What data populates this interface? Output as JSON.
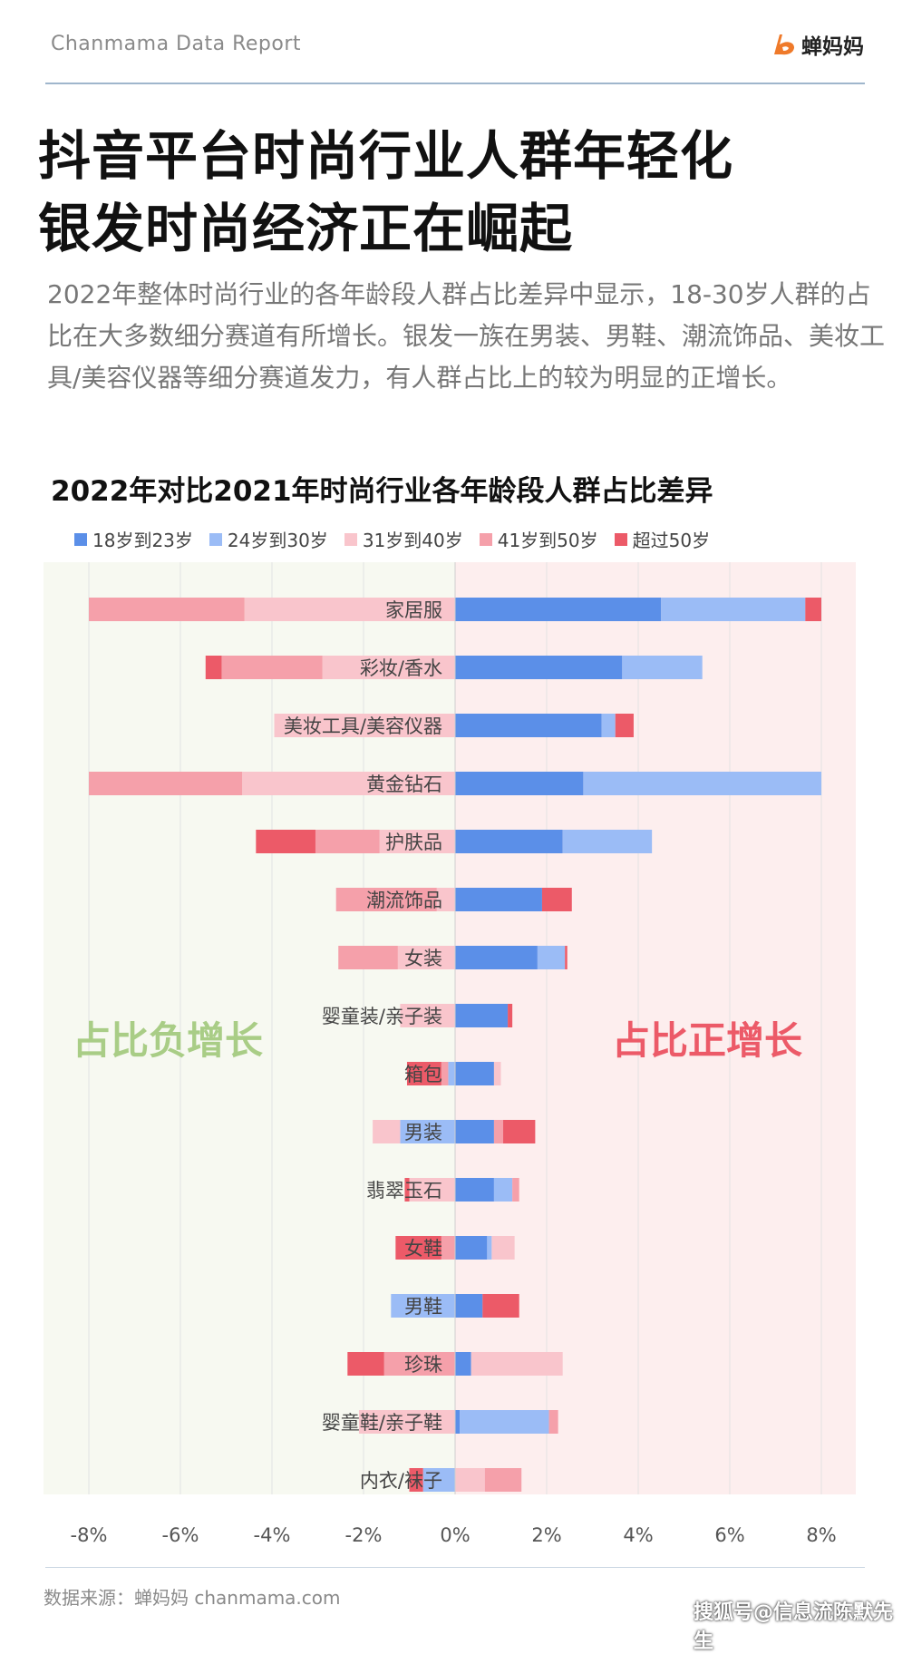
{
  "header": {
    "brand": "Chanmama Data Report",
    "logo_text": "蝉妈妈"
  },
  "title": {
    "line1": "抖音平台时尚行业人群年轻化",
    "line2": "银发时尚经济正在崛起"
  },
  "intro": "2022年整体时尚行业的各年龄段人群占比差异中显示，18-30岁人群的占比在大多数细分赛道有所增长。银发一族在男装、男鞋、潮流饰品、美妆工具/美容仪器等细分赛道发力，有人群占比上的较为明显的正增长。",
  "footer": {
    "source": "数据来源：蝉妈妈 chanmama.com",
    "watermark": "搜狐号@信息流陈默先生"
  },
  "colors": {
    "s18_23": "#5b8fe8",
    "s24_30": "#9bbcf6",
    "s31_40": "#f9c5cc",
    "s41_50": "#f5a0aa",
    "s50p": "#ec5a68",
    "neg_bg": "#f7f9f1",
    "pos_bg": "#fdeeee",
    "neg_label": "#a9cd86",
    "pos_label": "#ec5a68"
  },
  "chart_data": {
    "type": "bar",
    "orientation": "horizontal-stacked-diverging",
    "title": "2022年对比2021年时尚行业各年龄段人群占比差异",
    "legend_position": "top",
    "grid": true,
    "xlim": [
      -8,
      8
    ],
    "x_ticks": [
      "-8%",
      "-6%",
      "-4%",
      "-2%",
      "0%",
      "2%",
      "4%",
      "6%",
      "8%"
    ],
    "x_tick_values": [
      -8,
      -6,
      -4,
      -2,
      0,
      2,
      4,
      6,
      8
    ],
    "region_labels": {
      "negative": "占比负增长",
      "positive": "占比正增长"
    },
    "series": [
      {
        "name": "18岁到23岁",
        "key": "s18_23"
      },
      {
        "name": "24岁到30岁",
        "key": "s24_30"
      },
      {
        "name": "31岁到40岁",
        "key": "s31_40"
      },
      {
        "name": "41岁到50岁",
        "key": "s41_50"
      },
      {
        "name": "超过50岁",
        "key": "s50p"
      }
    ],
    "categories": [
      {
        "name": "家居服",
        "values": {
          "s18_23": 4.5,
          "s24_30": 3.15,
          "s31_40": -4.6,
          "s41_50": -3.4,
          "s50p": 0.35
        }
      },
      {
        "name": "彩妆/香水",
        "values": {
          "s18_23": 3.65,
          "s24_30": 1.75,
          "s31_40": -2.9,
          "s41_50": -2.2,
          "s50p": -0.35
        }
      },
      {
        "name": "美妆工具/美容仪器",
        "values": {
          "s18_23": 3.2,
          "s24_30": 0.3,
          "s31_40": -3.95,
          "s41_50": 0,
          "s50p": 0.4
        }
      },
      {
        "name": "黄金钻石",
        "values": {
          "s18_23": 2.8,
          "s24_30": 5.2,
          "s31_40": -4.65,
          "s41_50": -3.35,
          "s50p": 0
        }
      },
      {
        "name": "护肤品",
        "values": {
          "s18_23": 2.35,
          "s24_30": 1.95,
          "s31_40": -1.65,
          "s41_50": -1.4,
          "s50p": -1.3
        }
      },
      {
        "name": "潮流饰品",
        "values": {
          "s18_23": 1.9,
          "s24_30": 0,
          "s31_40": -0.4,
          "s41_50": -2.2,
          "s50p": 0.65
        }
      },
      {
        "name": "女装",
        "values": {
          "s18_23": 1.8,
          "s24_30": 0.6,
          "s31_40": -1.25,
          "s41_50": -1.3,
          "s50p": 0.05
        }
      },
      {
        "name": "婴童装/亲子装",
        "values": {
          "s18_23": 1.15,
          "s24_30": 0,
          "s31_40": -1.2,
          "s41_50": 0,
          "s50p": 0.1
        }
      },
      {
        "name": "箱包",
        "values": {
          "s18_23": 0.85,
          "s24_30": -0.15,
          "s31_40": 0.15,
          "s41_50": -0.15,
          "s50p": -0.75
        }
      },
      {
        "name": "男装",
        "values": {
          "s18_23": 0.85,
          "s24_30": -1.2,
          "s31_40": -0.6,
          "s41_50": 0.2,
          "s50p": 0.7
        }
      },
      {
        "name": "翡翠玉石",
        "values": {
          "s18_23": 0.85,
          "s24_30": 0.4,
          "s31_40": -1.0,
          "s41_50": 0.15,
          "s50p": -0.1
        }
      },
      {
        "name": "女鞋",
        "values": {
          "s18_23": 0.7,
          "s24_30": 0.1,
          "s31_40": 0.5,
          "s41_50": -0.3,
          "s50p": -1.0
        }
      },
      {
        "name": "男鞋",
        "values": {
          "s18_23": 0.6,
          "s24_30": -1.4,
          "s31_40": 0,
          "s41_50": 0,
          "s50p": 0.8
        }
      },
      {
        "name": "珍珠",
        "values": {
          "s18_23": 0.35,
          "s24_30": 0,
          "s31_40": 2.0,
          "s41_50": -1.55,
          "s50p": -0.8
        }
      },
      {
        "name": "婴童鞋/亲子鞋",
        "values": {
          "s18_23": 0.1,
          "s24_30": 1.95,
          "s31_40": -2.1,
          "s41_50": 0.2,
          "s50p": 0
        }
      },
      {
        "name": "内衣/袜子",
        "values": {
          "s18_23": 0,
          "s24_30": -0.7,
          "s31_40": 0.65,
          "s41_50": 0.8,
          "s50p": -0.3
        }
      }
    ]
  }
}
